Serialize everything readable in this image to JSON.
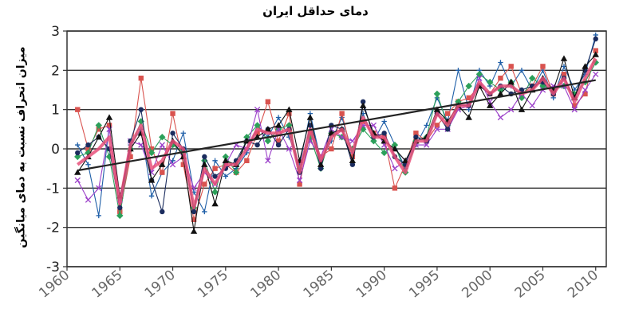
{
  "chart_data": {
    "type": "line",
    "title": "دمای حداقل ایران",
    "xlabel": "",
    "ylabel": "میزان انحراف نسبت به دمای میانگین",
    "xlim": [
      1960,
      2011
    ],
    "ylim": [
      -3,
      3
    ],
    "grid": true,
    "legend": "none",
    "x_ticks": [
      "1960",
      "1965",
      "1970",
      "1975",
      "1980",
      "1985",
      "1990",
      "1995",
      "2000",
      "2005",
      "2010"
    ],
    "y_ticks": [
      "3",
      "2",
      "1",
      "0",
      "-1",
      "-2",
      "-3"
    ],
    "x": [
      1961,
      1962,
      1963,
      1964,
      1965,
      1966,
      1967,
      1968,
      1969,
      1970,
      1971,
      1972,
      1973,
      1974,
      1975,
      1976,
      1977,
      1978,
      1979,
      1980,
      1981,
      1982,
      1983,
      1984,
      1985,
      1986,
      1987,
      1988,
      1989,
      1990,
      1991,
      1992,
      1993,
      1994,
      1995,
      1996,
      1997,
      1998,
      1999,
      2000,
      2001,
      2002,
      2003,
      2004,
      2005,
      2006,
      2007,
      2008,
      2009,
      2010
    ],
    "series": [
      {
        "color": "#1f5fa8",
        "marker": "plus",
        "values": [
          0.1,
          -0.4,
          -1.7,
          0.6,
          -1.6,
          0.1,
          0.5,
          -1.2,
          -0.6,
          -0.3,
          0.4,
          -1.1,
          -1.6,
          -0.3,
          -0.7,
          -0.5,
          -0.1,
          0.6,
          0.3,
          0.8,
          0.3,
          -0.4,
          0.9,
          -0.3,
          0.2,
          0.8,
          -0.1,
          0.9,
          0.2,
          0.7,
          0.1,
          -0.5,
          0.1,
          0.6,
          1.3,
          0.7,
          2.0,
          1.0,
          2.0,
          1.6,
          2.2,
          1.6,
          2.0,
          1.5,
          2.0,
          1.3,
          2.1,
          1.5,
          1.9,
          2.9
        ]
      },
      {
        "color": "#d9534f",
        "marker": "square",
        "values": [
          1.0,
          0.0,
          0.5,
          0.6,
          -1.6,
          -0.2,
          1.8,
          0.0,
          -0.6,
          0.9,
          -0.4,
          -1.8,
          -0.9,
          -0.5,
          -0.4,
          -0.6,
          -0.3,
          0.4,
          1.2,
          0.2,
          0.9,
          -0.9,
          0.4,
          -0.2,
          0.0,
          0.9,
          -0.2,
          0.7,
          0.4,
          0.3,
          -1.0,
          -0.4,
          0.4,
          0.2,
          0.6,
          0.9,
          1.2,
          1.3,
          1.6,
          1.4,
          1.8,
          2.1,
          1.4,
          1.6,
          2.1,
          1.4,
          1.9,
          1.1,
          1.4,
          2.5
        ]
      },
      {
        "color": "#2ca05a",
        "marker": "diamond",
        "values": [
          -0.2,
          -0.1,
          0.6,
          -0.2,
          -1.7,
          0.0,
          0.7,
          -0.1,
          0.3,
          0.1,
          -0.1,
          -1.5,
          -0.3,
          -1.1,
          -0.2,
          -0.6,
          0.3,
          0.6,
          0.2,
          0.5,
          0.6,
          -0.5,
          0.3,
          -0.5,
          0.4,
          0.3,
          0.0,
          0.5,
          0.2,
          -0.1,
          0.1,
          -0.6,
          0.2,
          0.3,
          1.4,
          0.6,
          1.2,
          1.6,
          1.9,
          1.7,
          1.5,
          1.7,
          1.3,
          1.8,
          1.6,
          1.5,
          1.6,
          1.4,
          1.7,
          2.2
        ]
      },
      {
        "color": "#9b3fc9",
        "marker": "x",
        "values": [
          -0.8,
          -1.3,
          -1.0,
          0.5,
          -1.3,
          0.2,
          0.1,
          -0.6,
          0.1,
          -0.4,
          -0.2,
          -1.0,
          -0.6,
          -0.9,
          -0.4,
          0.1,
          0.0,
          1.0,
          -0.3,
          0.5,
          0.0,
          -0.8,
          0.2,
          -0.2,
          0.5,
          0.3,
          0.2,
          0.6,
          0.6,
          0.1,
          -0.5,
          -0.3,
          0.1,
          0.1,
          0.5,
          0.5,
          1.0,
          1.1,
          1.8,
          1.2,
          0.8,
          1.0,
          1.4,
          1.1,
          1.5,
          1.6,
          1.6,
          1.0,
          1.5,
          1.9
        ]
      },
      {
        "color": "#1b2c5e",
        "marker": "circle",
        "values": [
          -0.1,
          0.1,
          0.3,
          0.0,
          -1.5,
          0.2,
          1.0,
          -0.8,
          -1.6,
          0.4,
          0.0,
          -1.6,
          -0.2,
          -0.7,
          -0.5,
          -0.3,
          0.2,
          0.1,
          0.5,
          0.1,
          0.5,
          -0.6,
          0.6,
          -0.5,
          0.6,
          0.5,
          -0.4,
          1.2,
          0.3,
          0.4,
          -0.2,
          -0.4,
          0.3,
          0.2,
          0.9,
          0.5,
          1.1,
          1.1,
          1.6,
          1.4,
          1.6,
          1.4,
          1.5,
          1.6,
          1.7,
          1.4,
          1.8,
          1.3,
          2.0,
          2.8
        ]
      },
      {
        "color": "#111111",
        "marker": "triangle",
        "values": [
          -0.6,
          -0.2,
          0.3,
          0.8,
          -1.2,
          0.0,
          0.4,
          -0.8,
          -0.4,
          0.2,
          -0.2,
          -2.1,
          -0.4,
          -1.4,
          -0.3,
          -0.4,
          0.2,
          0.3,
          0.5,
          0.6,
          1.0,
          -0.3,
          0.8,
          -0.4,
          0.4,
          0.5,
          -0.3,
          1.1,
          0.4,
          0.2,
          0.0,
          -0.3,
          0.2,
          0.3,
          1.0,
          0.7,
          1.1,
          0.8,
          1.6,
          1.1,
          1.4,
          1.7,
          1.0,
          1.5,
          1.8,
          1.5,
          2.3,
          1.3,
          2.1,
          2.4
        ]
      },
      {
        "color": "#e8507a",
        "marker": "none",
        "width": 4,
        "values": [
          -0.4,
          -0.2,
          0.0,
          0.3,
          -1.4,
          0.1,
          0.6,
          -0.5,
          -0.3,
          0.2,
          0.0,
          -1.5,
          -0.5,
          -0.9,
          -0.4,
          -0.4,
          0.0,
          0.5,
          0.4,
          0.4,
          0.5,
          -0.6,
          0.5,
          -0.3,
          0.3,
          0.5,
          -0.1,
          0.8,
          0.3,
          0.3,
          -0.2,
          -0.6,
          0.2,
          0.2,
          0.9,
          0.6,
          1.1,
          1.1,
          1.7,
          1.4,
          1.6,
          1.6,
          1.4,
          1.5,
          1.8,
          1.4,
          1.8,
          1.2,
          1.8,
          2.3
        ]
      }
    ],
    "trend": {
      "x": [
        1961,
        2010
      ],
      "y": [
        -0.55,
        1.75
      ],
      "color": "#222222"
    }
  }
}
